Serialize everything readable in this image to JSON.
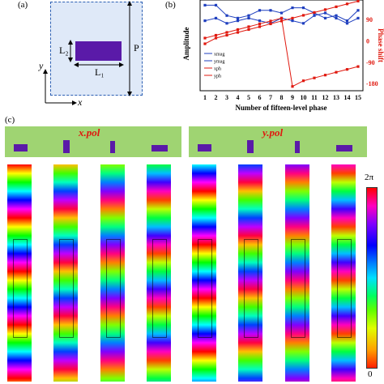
{
  "panels": {
    "a": "(a)",
    "b": "(b)",
    "c": "(c)"
  },
  "unit_cell": {
    "l2": "L₂",
    "l1": "L₁",
    "p": "P",
    "x_axis": "x",
    "y_axis": "y"
  },
  "chart_data": {
    "type": "line",
    "xlabel": "Number of fifteen-level phase",
    "ylabel_left": "Amplitude",
    "ylabel_right": "Phase shift",
    "categories": [
      1,
      2,
      3,
      4,
      5,
      6,
      7,
      8,
      9,
      10,
      11,
      12,
      13,
      14,
      15
    ],
    "right_ticks": [
      "90",
      "0",
      "-90",
      "-180"
    ],
    "series": [
      {
        "name": "xmag",
        "axis": "left",
        "color": "#1f3fbf",
        "values": [
          0.98,
          0.98,
          0.94,
          0.93,
          0.94,
          0.96,
          0.96,
          0.95,
          0.97,
          0.97,
          0.95,
          0.93,
          0.94,
          0.92,
          0.96
        ]
      },
      {
        "name": "ymag",
        "axis": "left",
        "color": "#1f3fbf",
        "values": [
          0.92,
          0.93,
          0.91,
          0.92,
          0.93,
          0.92,
          0.91,
          0.93,
          0.92,
          0.91,
          0.94,
          0.95,
          0.93,
          0.91,
          0.93
        ]
      },
      {
        "name": "xph",
        "axis": "right",
        "color": "#e0190f",
        "values": [
          -12,
          12,
          24,
          36,
          48,
          60,
          72,
          84,
          96,
          108,
          120,
          132,
          144,
          156,
          168
        ]
      },
      {
        "name": "yph",
        "axis": "right",
        "color": "#e0190f",
        "values": [
          12,
          24,
          36,
          48,
          60,
          72,
          84,
          96,
          -192,
          -168,
          -156,
          -144,
          -132,
          -120,
          -108
        ]
      }
    ]
  },
  "field_maps": {
    "x_pol_label": "x.pol",
    "y_pol_label": "y.pol",
    "colorbar_top": "2π",
    "colorbar_bottom": "0"
  }
}
